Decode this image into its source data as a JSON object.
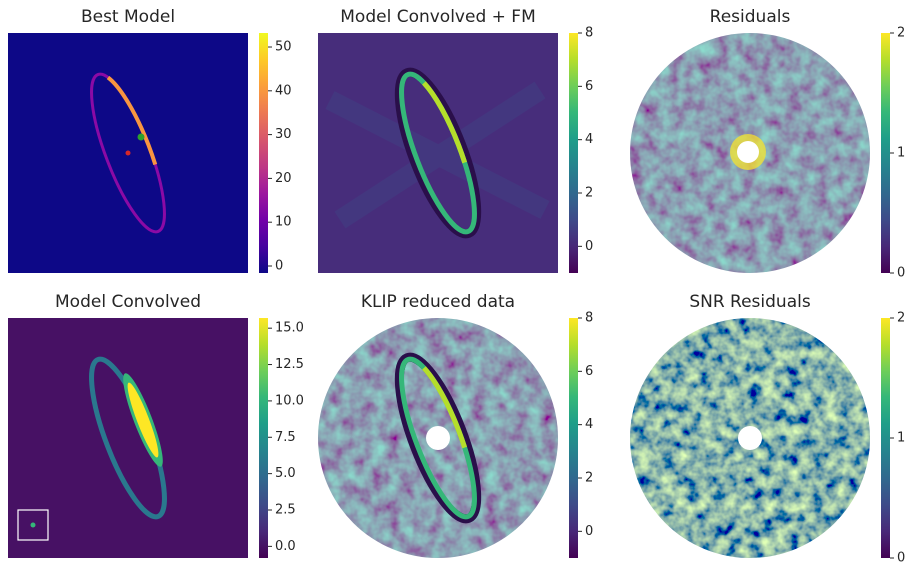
{
  "chart_data": [
    {
      "type": "image",
      "title": "Best Model",
      "colormap": "plasma",
      "ylim": [
        -1.6,
        53.2
      ],
      "yticks": [
        0,
        10,
        20,
        30,
        40,
        50
      ]
    },
    {
      "type": "image",
      "title": "Model Convolved + FM",
      "colormap": "viridis",
      "ylim": [
        -1,
        8
      ],
      "yticks": [
        0,
        2,
        4,
        6,
        8
      ]
    },
    {
      "type": "image",
      "title": "Residuals",
      "colormap": "viridis",
      "ylim": [
        0,
        2
      ],
      "yticks": [
        0,
        1,
        2
      ]
    },
    {
      "type": "image",
      "title": "Model Convolved",
      "colormap": "viridis",
      "ylim": [
        -0.8,
        15.7
      ],
      "yticks": [
        {
          "value": 0,
          "label": "0.0"
        },
        2.5,
        {
          "value": 5,
          "label": "5.0"
        },
        7.5,
        {
          "value": 10,
          "label": "10.0"
        },
        12.5,
        {
          "value": 15,
          "label": "15.0"
        }
      ]
    },
    {
      "type": "image",
      "title": "KLIP reduced data",
      "colormap": "viridis",
      "ylim": [
        -1,
        8
      ],
      "yticks": [
        0,
        2,
        4,
        6,
        8
      ]
    },
    {
      "type": "image",
      "title": "SNR Residuals",
      "colormap": "viridis",
      "ylim": [
        0,
        2
      ],
      "yticks": [
        0,
        1,
        2
      ]
    }
  ]
}
